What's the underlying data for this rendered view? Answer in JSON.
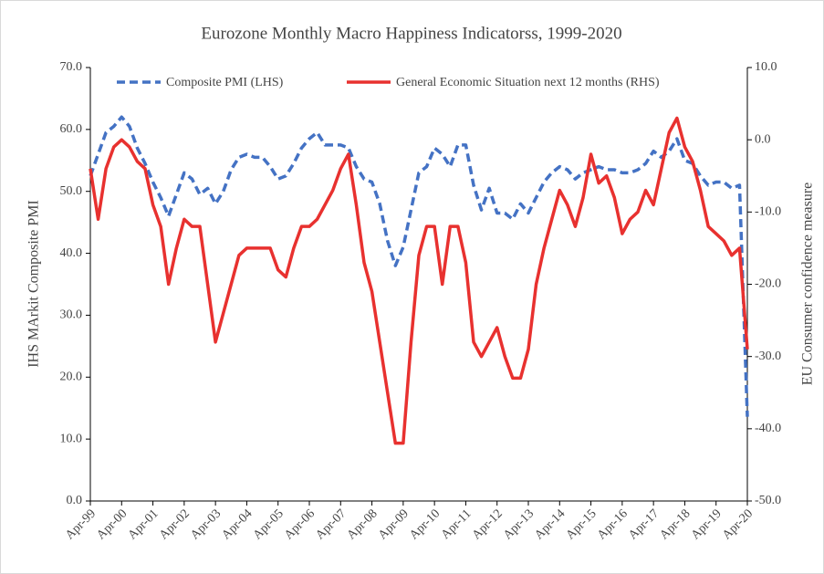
{
  "chart_data": {
    "type": "line",
    "title": "Eurozone Monthly Macro Happiness Indicatorss, 1999-2020",
    "ylabel": "IHS MArkit Composite PMI",
    "y2label": "EU Consumer confidence measure",
    "categories": [
      "Apr-99",
      null,
      null,
      null,
      "Apr-00",
      null,
      null,
      null,
      "Apr-01",
      null,
      null,
      null,
      "Apr-02",
      null,
      null,
      null,
      "Apr-03",
      null,
      null,
      null,
      "Apr-04",
      null,
      null,
      null,
      "Apr-05",
      null,
      null,
      null,
      "Apr-06",
      null,
      null,
      null,
      "Apr-07",
      null,
      null,
      null,
      "Apr-08",
      null,
      null,
      null,
      "Apr-09",
      null,
      null,
      null,
      "Apr-10",
      null,
      null,
      null,
      "Apr-11",
      null,
      null,
      null,
      "Apr-12",
      null,
      null,
      null,
      "Apr-13",
      null,
      null,
      null,
      "Apr-14",
      null,
      null,
      null,
      "Apr-15",
      null,
      null,
      null,
      "Apr-16",
      null,
      null,
      null,
      "Apr-17",
      null,
      null,
      null,
      "Apr-18",
      null,
      null,
      null,
      "Apr-19",
      null,
      null,
      null,
      "Apr-20"
    ],
    "series": [
      {
        "name": "Composite PMI (LHS)",
        "color": "#4472c4",
        "style": "dashed",
        "axis": "y",
        "values": [
          52.5,
          56,
          59.5,
          60.5,
          62,
          60.5,
          57,
          54.5,
          51.5,
          49,
          46,
          49.5,
          53,
          52,
          49.5,
          50.5,
          48,
          50,
          53.5,
          55.5,
          56,
          55.5,
          55.5,
          54,
          52,
          52.5,
          54.5,
          57,
          58.5,
          59.5,
          57.5,
          57.5,
          57.5,
          57,
          54,
          52,
          51.5,
          48,
          42,
          38,
          41,
          47,
          53,
          54,
          57,
          56,
          54,
          57.5,
          57.5,
          51,
          47,
          50.5,
          46.5,
          46.5,
          45.5,
          48,
          46.5,
          49,
          51.5,
          53,
          54,
          53.5,
          52,
          53,
          53.5,
          54,
          53.5,
          53.5,
          53,
          53,
          53.5,
          54.5,
          56.5,
          55.5,
          56.5,
          58.5,
          55,
          54.5,
          52.5,
          51,
          51.5,
          51.5,
          50.5,
          51,
          13.6
        ]
      },
      {
        "name": "General Economic Situation next 12 months (RHS)",
        "color": "#e8312f",
        "style": "solid",
        "axis": "y2",
        "values": [
          -4,
          -11,
          -4,
          -1,
          0,
          -1,
          -3,
          -4,
          -9,
          -12,
          -20,
          -15,
          -11,
          -12,
          -12,
          -20,
          -28,
          -24,
          -20,
          -16,
          -15,
          -15,
          -15,
          -15,
          -18,
          -19,
          -15,
          -12,
          -12,
          -11,
          -9,
          -7,
          -4,
          -2,
          -9,
          -17,
          -21,
          -28,
          -35,
          -42,
          -42,
          -28,
          -16,
          -12,
          -12,
          -20,
          -12,
          -12,
          -17,
          -28,
          -30,
          -28,
          -26,
          -30,
          -33,
          -33,
          -29,
          -20,
          -15,
          -11,
          -7,
          -9,
          -12,
          -8,
          -2,
          -6,
          -5,
          -8,
          -13,
          -11,
          -10,
          -7,
          -9,
          -4,
          1,
          3,
          -1,
          -3,
          -7,
          -12,
          -13,
          -14,
          -16,
          -15,
          -29
        ]
      }
    ],
    "ylim": [
      0,
      70
    ],
    "yticks": [
      {
        "value": 0,
        "label": "0.0"
      },
      {
        "value": 10,
        "label": "10.0"
      },
      {
        "value": 20,
        "label": "20.0"
      },
      {
        "value": 30,
        "label": "30.0"
      },
      {
        "value": 40,
        "label": "40.0"
      },
      {
        "value": 50,
        "label": "50.0"
      },
      {
        "value": 60,
        "label": "60.0"
      },
      {
        "value": 70,
        "label": "70.0"
      }
    ],
    "y2lim": [
      -50,
      10
    ],
    "y2ticks": [
      {
        "value": -50,
        "label": "-50.0"
      },
      {
        "value": -40,
        "label": "-40.0"
      },
      {
        "value": -30,
        "label": "-30.0"
      },
      {
        "value": -20,
        "label": "-20.0"
      },
      {
        "value": -10,
        "label": "-10.0"
      },
      {
        "value": 0,
        "label": "0.0"
      },
      {
        "value": 10,
        "label": "10.0"
      }
    ],
    "legend": "top",
    "grid": false
  }
}
